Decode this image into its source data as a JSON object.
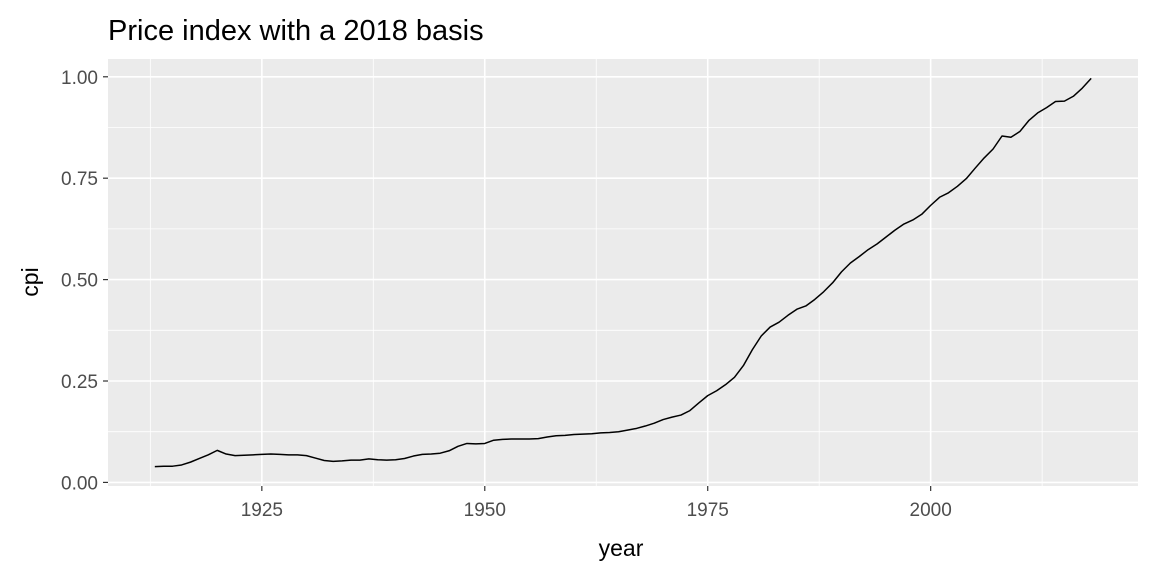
{
  "chart_data": {
    "type": "line",
    "title": "Price index with a 2018 basis",
    "xlabel": "year",
    "ylabel": "cpi",
    "xlim": [
      1913,
      2018
    ],
    "ylim": [
      0,
      1
    ],
    "x_ticks": [
      1925,
      1950,
      1975,
      2000
    ],
    "y_ticks": [
      0,
      0.25,
      0.5,
      0.75,
      1
    ],
    "x_tick_labels": [
      "1925",
      "1950",
      "1975",
      "2000"
    ],
    "y_tick_labels": [
      "0.00",
      "0.25",
      "0.50",
      "0.75",
      "1.00"
    ],
    "grid": true,
    "panel_background": "#ebebeb",
    "grid_color": "#ffffff",
    "line_color": "#000000",
    "series": [
      {
        "x": [
          1913,
          1914,
          1915,
          1916,
          1917,
          1918,
          1919,
          1920,
          1921,
          1922,
          1923,
          1924,
          1925,
          1926,
          1927,
          1928,
          1929,
          1930,
          1931,
          1932,
          1933,
          1934,
          1935,
          1936,
          1937,
          1938,
          1939,
          1940,
          1941,
          1942,
          1943,
          1944,
          1945,
          1946,
          1947,
          1948,
          1949,
          1950,
          1951,
          1952,
          1953,
          1954,
          1955,
          1956,
          1957,
          1958,
          1959,
          1960,
          1961,
          1962,
          1963,
          1964,
          1965,
          1966,
          1967,
          1968,
          1969,
          1970,
          1971,
          1972,
          1973,
          1974,
          1975,
          1976,
          1977,
          1978,
          1979,
          1980,
          1981,
          1982,
          1983,
          1984,
          1985,
          1986,
          1987,
          1988,
          1989,
          1990,
          1991,
          1992,
          1993,
          1994,
          1995,
          1996,
          1997,
          1998,
          1999,
          2000,
          2001,
          2002,
          2003,
          2004,
          2005,
          2006,
          2007,
          2008,
          2009,
          2010,
          2011,
          2012,
          2013,
          2014,
          2015,
          2016,
          2017,
          2018
        ],
        "y": [
          0.039,
          0.04,
          0.04,
          0.043,
          0.05,
          0.059,
          0.068,
          0.079,
          0.07,
          0.066,
          0.067,
          0.068,
          0.069,
          0.07,
          0.069,
          0.068,
          0.068,
          0.066,
          0.06,
          0.054,
          0.052,
          0.053,
          0.055,
          0.055,
          0.058,
          0.056,
          0.055,
          0.056,
          0.059,
          0.065,
          0.069,
          0.07,
          0.072,
          0.078,
          0.089,
          0.096,
          0.095,
          0.096,
          0.104,
          0.106,
          0.107,
          0.107,
          0.107,
          0.108,
          0.112,
          0.115,
          0.116,
          0.118,
          0.119,
          0.12,
          0.122,
          0.123,
          0.125,
          0.129,
          0.133,
          0.139,
          0.146,
          0.155,
          0.161,
          0.166,
          0.177,
          0.196,
          0.214,
          0.226,
          0.241,
          0.259,
          0.288,
          0.327,
          0.361,
          0.383,
          0.395,
          0.412,
          0.427,
          0.435,
          0.451,
          0.47,
          0.492,
          0.519,
          0.541,
          0.557,
          0.574,
          0.588,
          0.605,
          0.622,
          0.637,
          0.647,
          0.661,
          0.683,
          0.703,
          0.714,
          0.73,
          0.749,
          0.775,
          0.8,
          0.822,
          0.854,
          0.851,
          0.865,
          0.892,
          0.911,
          0.924,
          0.939,
          0.94,
          0.952,
          0.972,
          0.996
        ]
      }
    ]
  }
}
